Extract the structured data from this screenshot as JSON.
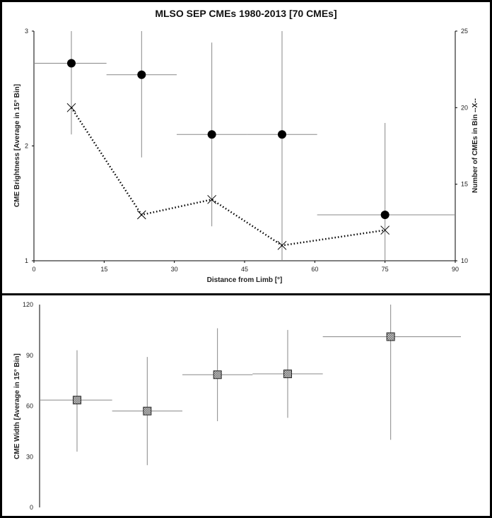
{
  "chart_data": [
    {
      "type": "scatter",
      "title": "MLSO SEP CMEs 1980-2013  [70 CMEs]",
      "xlabel": "Distance from Limb [°]",
      "ylabel": "CME Brightness [Average in 15° Bin]",
      "y2label": "Number of CMEs in Bin  --X--",
      "xlim": [
        0,
        90
      ],
      "ylim": [
        1,
        3
      ],
      "y2lim": [
        10,
        25
      ],
      "xticks": [
        0,
        15,
        30,
        45,
        60,
        75,
        90
      ],
      "yticks": [
        1,
        2,
        3
      ],
      "y2ticks": [
        10,
        15,
        20,
        25
      ],
      "series": [
        {
          "name": "CME Brightness",
          "marker": "filled-circle",
          "axis": "left",
          "points": [
            {
              "x": 8,
              "y": 2.72,
              "xerr": [
                0,
                15.5
              ],
              "yerr": [
                2.1,
                3.0
              ]
            },
            {
              "x": 23,
              "y": 2.62,
              "xerr": [
                15.5,
                30.5
              ],
              "yerr": [
                1.9,
                3.0
              ]
            },
            {
              "x": 38,
              "y": 2.1,
              "xerr": [
                30.5,
                45.5
              ],
              "yerr": [
                1.3,
                2.9
              ]
            },
            {
              "x": 53,
              "y": 2.1,
              "xerr": [
                45.5,
                60.5
              ],
              "yerr": [
                1.0,
                3.0
              ]
            },
            {
              "x": 75,
              "y": 1.4,
              "xerr": [
                60.5,
                90
              ],
              "yerr": [
                1.0,
                2.2
              ]
            }
          ]
        },
        {
          "name": "Number of CMEs in Bin",
          "marker": "x",
          "line": "dotted",
          "axis": "right",
          "points": [
            {
              "x": 8,
              "y": 20
            },
            {
              "x": 23,
              "y": 13
            },
            {
              "x": 38,
              "y": 14
            },
            {
              "x": 53,
              "y": 11
            },
            {
              "x": 75,
              "y": 12
            }
          ]
        }
      ]
    },
    {
      "type": "scatter",
      "title": "",
      "xlabel": "",
      "ylabel": "CME Width  [Average in 15° Bin]",
      "xlim": [
        0,
        90
      ],
      "ylim": [
        0,
        120
      ],
      "yticks": [
        0,
        30,
        60,
        90,
        120
      ],
      "series": [
        {
          "name": "CME Width",
          "marker": "hatched-square",
          "points": [
            {
              "x": 8,
              "y": 63.5,
              "xerr": [
                0,
                15.5
              ],
              "yerr": [
                33,
                93
              ]
            },
            {
              "x": 23,
              "y": 57,
              "xerr": [
                15.5,
                30.5
              ],
              "yerr": [
                25,
                89
              ]
            },
            {
              "x": 38,
              "y": 78.5,
              "xerr": [
                30.5,
                45.5
              ],
              "yerr": [
                51,
                106
              ]
            },
            {
              "x": 53,
              "y": 79,
              "xerr": [
                45.5,
                60.5
              ],
              "yerr": [
                53,
                105
              ]
            },
            {
              "x": 75,
              "y": 101,
              "xerr": [
                60.5,
                90
              ],
              "yerr": [
                40,
                120
              ]
            }
          ]
        }
      ]
    }
  ]
}
